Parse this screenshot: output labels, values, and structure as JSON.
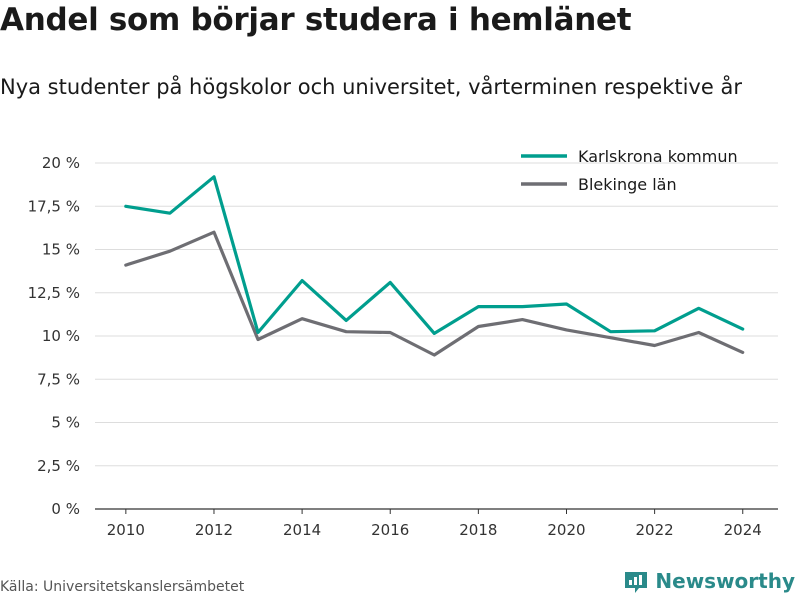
{
  "header": {
    "title": "Andel som börjar studera i hemlänet",
    "subtitle": "Nya studenter på högskolor och universitet, vårterminen respektive år"
  },
  "footer": {
    "source": "Källa: Universitetskanslersämbetet",
    "logo_text": "Newsworthy",
    "logo_icon": "newsworthy-logo-icon"
  },
  "chart_data": {
    "type": "line",
    "title": "",
    "xlabel": "",
    "ylabel": "",
    "x": [
      2010,
      2011,
      2012,
      2013,
      2014,
      2015,
      2016,
      2017,
      2018,
      2019,
      2020,
      2021,
      2022,
      2023,
      2024
    ],
    "x_ticks": [
      2010,
      2012,
      2014,
      2016,
      2018,
      2020,
      2022,
      2024
    ],
    "x_tick_labels": [
      "2010",
      "2012",
      "2014",
      "2016",
      "2018",
      "2020",
      "2022",
      "2024"
    ],
    "xlim": [
      2009.3,
      2024.8
    ],
    "ylim": [
      0,
      20
    ],
    "y_ticks": [
      0,
      2.5,
      5,
      7.5,
      10,
      12.5,
      15,
      17.5,
      20
    ],
    "y_tick_labels": [
      "0 %",
      "2,5 %",
      "5 %",
      "7,5 %",
      "10 %",
      "12,5 %",
      "15 %",
      "17,5 %",
      "20 %"
    ],
    "grid": "horizontal",
    "legend_position": "top-right",
    "series": [
      {
        "name": "Karlskrona kommun",
        "color": "#009e8e",
        "values": [
          17.5,
          17.1,
          19.2,
          10.2,
          13.2,
          10.9,
          13.1,
          10.15,
          11.7,
          11.7,
          11.85,
          10.25,
          10.3,
          11.6,
          10.4
        ]
      },
      {
        "name": "Blekinge län",
        "color": "#6e6e73",
        "values": [
          14.1,
          14.9,
          16.0,
          9.8,
          11.0,
          10.25,
          10.2,
          8.9,
          10.55,
          10.95,
          10.35,
          9.9,
          9.45,
          10.2,
          9.05
        ]
      }
    ]
  }
}
